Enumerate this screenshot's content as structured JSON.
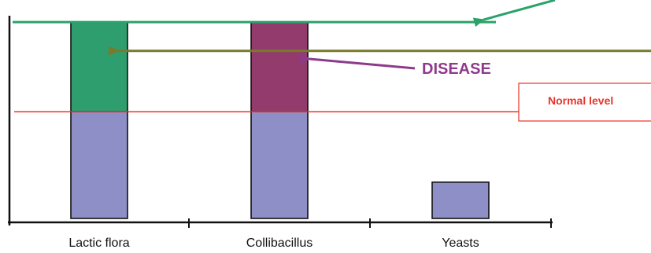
{
  "chart_data": {
    "type": "bar",
    "stacked": true,
    "categories": [
      "Lactic flora",
      "Collibacillus",
      "Yeasts"
    ],
    "series": [
      {
        "values": [
          1.0,
          1.0,
          0.34
        ],
        "color": "#8f8fc8"
      },
      {
        "values": [
          0.84,
          0,
          0
        ],
        "color": "#2f9e6e"
      },
      {
        "values": [
          0,
          0.84,
          0
        ],
        "color": "#923b6c"
      }
    ],
    "ylim": [
      0,
      1.9
    ],
    "grid": false,
    "reference_lines": [
      {
        "label": "Normal level",
        "value": 1.0,
        "color": "#e8332a"
      },
      {
        "value": 1.84,
        "color": "#2aa26a",
        "arrow": true
      },
      {
        "value": 1.57,
        "color": "#7a7a2a",
        "arrow": true
      }
    ],
    "annotations": [
      {
        "text": "DISEASE",
        "color": "#8e3a8c"
      }
    ],
    "colors": {
      "normal_bar": "#8f8fc8",
      "excess_lactic": "#2f9e6e",
      "excess_colli": "#923b6c",
      "normal_line": "#e8332a",
      "green_line": "#2aa26a",
      "olive_line": "#7a7a2a",
      "disease": "#8e3a8c",
      "axis": "#111111"
    }
  }
}
